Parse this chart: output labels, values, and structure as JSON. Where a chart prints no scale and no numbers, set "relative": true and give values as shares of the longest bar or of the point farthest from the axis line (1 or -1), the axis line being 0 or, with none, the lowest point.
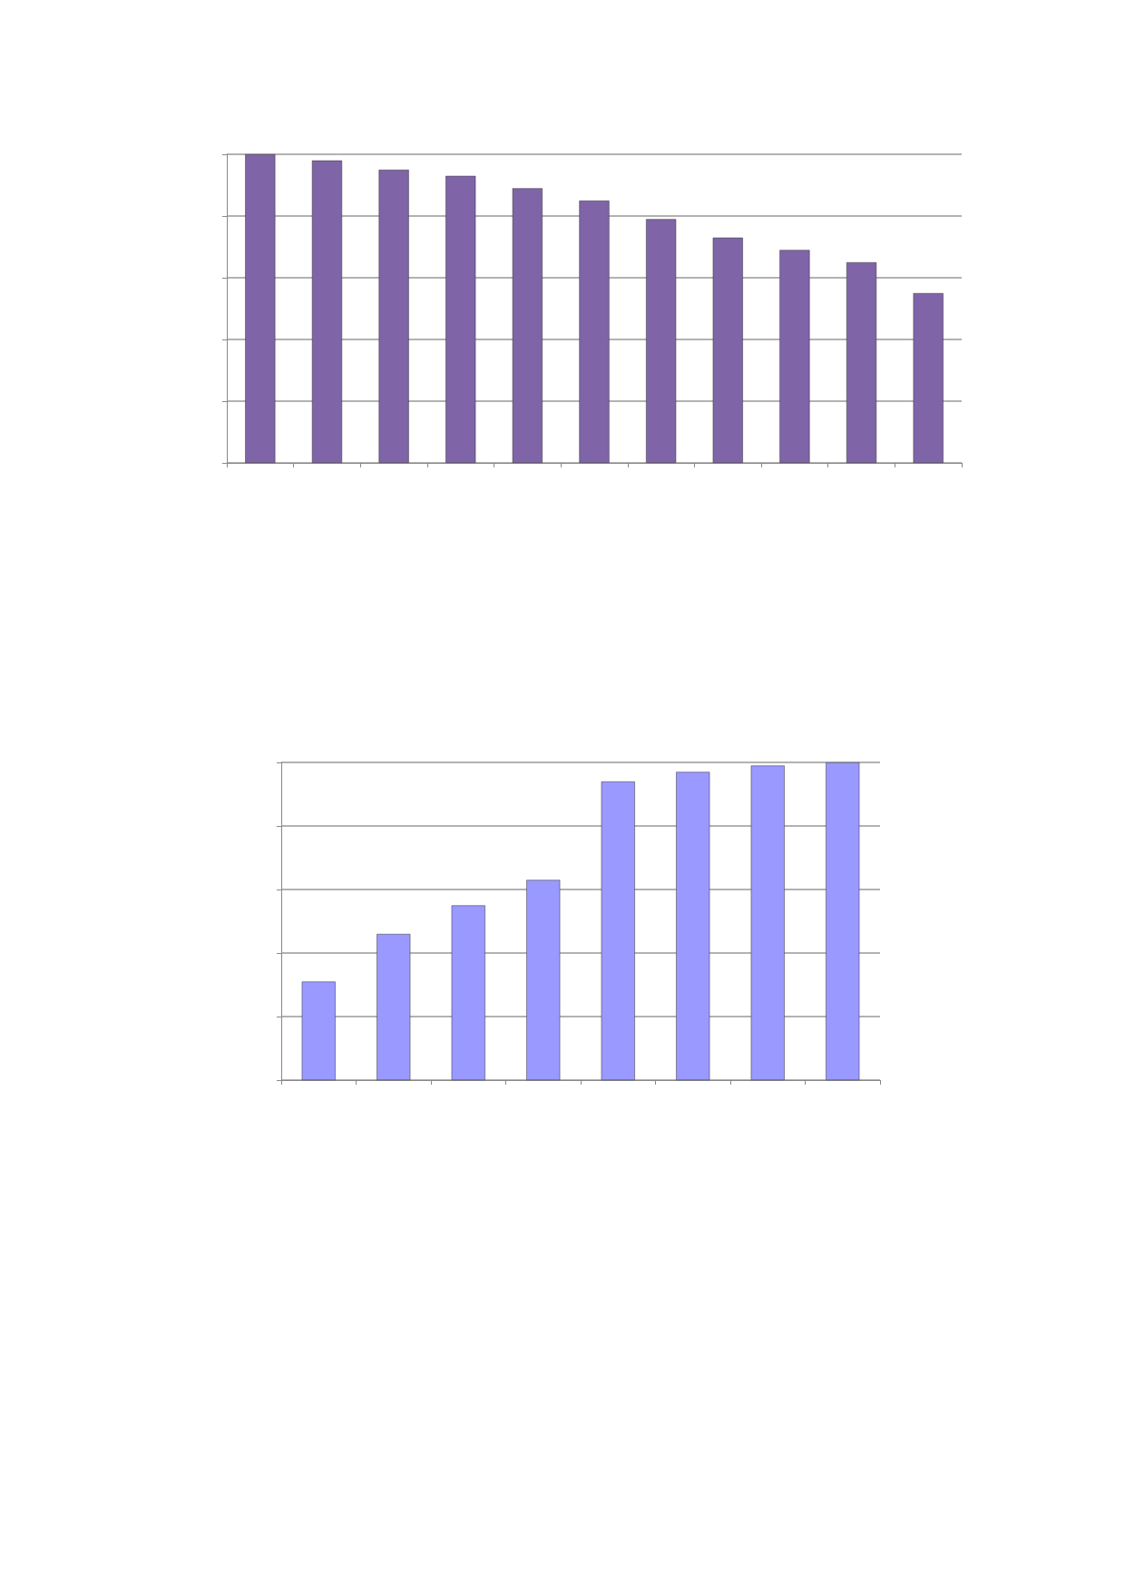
{
  "chart_data": [
    {
      "type": "bar",
      "relative": true,
      "grid": "y",
      "categories": [
        null,
        null,
        null,
        null,
        null,
        null,
        null,
        null,
        null,
        null,
        null
      ],
      "color": "#7f64a8",
      "values": [
        1,
        0.98,
        0.95,
        0.93,
        0.89,
        0.85,
        0.79,
        0.73,
        0.69,
        0.65,
        0.55
      ]
    },
    {
      "type": "bar",
      "relative": true,
      "grid": "y",
      "categories": [
        null,
        null,
        null,
        null,
        null,
        null,
        null,
        null
      ],
      "color": "#9999ff",
      "values": [
        0.31,
        0.46,
        0.55,
        0.63,
        0.94,
        0.97,
        0.99,
        1
      ]
    }
  ]
}
